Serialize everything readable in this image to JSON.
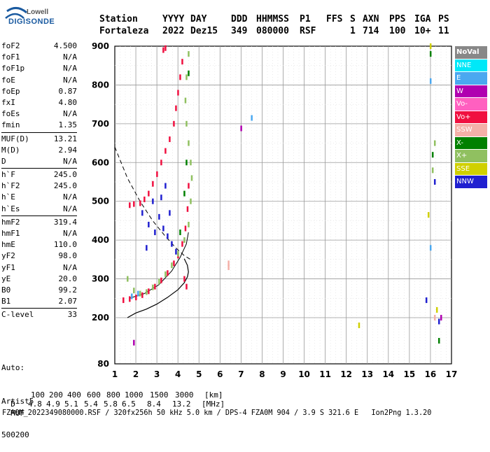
{
  "logo": {
    "line1": "Lowell",
    "line2": "DIGISONDE"
  },
  "header": {
    "labels": [
      "Station",
      "YYYY",
      "DAY",
      "DDD",
      "HHMMSS",
      "P1",
      "FFS",
      "S",
      "AXN",
      "PPS",
      "IGA",
      "PS"
    ],
    "values": [
      "Fortaleza",
      "2022",
      "Dez15",
      "349",
      "080000",
      "RSF",
      "1",
      "714",
      "100",
      "10+",
      "11"
    ]
  },
  "params": [
    {
      "name": "foF2",
      "value": "4.500"
    },
    {
      "name": "foF1",
      "value": "N/A"
    },
    {
      "name": "foF1p",
      "value": "N/A"
    },
    {
      "name": "foE",
      "value": "N/A"
    },
    {
      "name": "foEp",
      "value": "0.87"
    },
    {
      "name": "fxI",
      "value": "4.80"
    },
    {
      "name": "foEs",
      "value": "N/A"
    },
    {
      "name": "fmin",
      "value": "1.35"
    },
    {
      "name": "MUF(D)",
      "value": "13.21"
    },
    {
      "name": "M(D)",
      "value": "2.94"
    },
    {
      "name": "D",
      "value": "N/A"
    },
    {
      "name": "h`F",
      "value": "245.0"
    },
    {
      "name": "h`F2",
      "value": "245.0"
    },
    {
      "name": "h`E",
      "value": "N/A"
    },
    {
      "name": "h`Es",
      "value": "N/A"
    },
    {
      "name": "hmF2",
      "value": "319.4"
    },
    {
      "name": "hmF1",
      "value": "N/A"
    },
    {
      "name": "hmE",
      "value": "110.0"
    },
    {
      "name": "yF2",
      "value": "98.0"
    },
    {
      "name": "yF1",
      "value": "N/A"
    },
    {
      "name": "yE",
      "value": "20.0"
    },
    {
      "name": "B0",
      "value": "99.2"
    },
    {
      "name": "B1",
      "value": "2.07"
    },
    {
      "name": "C-level",
      "value": "33"
    }
  ],
  "auto": [
    "Auto:",
    "Artist5",
    "500200"
  ],
  "legend": [
    {
      "label": "NoVal",
      "color": "#888888"
    },
    {
      "label": "NNE",
      "color": "#00e8f8"
    },
    {
      "label": "E",
      "color": "#4aa8f0"
    },
    {
      "label": "W",
      "color": "#b000b0"
    },
    {
      "label": "Vo-",
      "color": "#ff60c0"
    },
    {
      "label": "Vo+",
      "color": "#f01040"
    },
    {
      "label": "SSW",
      "color": "#f4b0a8"
    },
    {
      "label": "X-",
      "color": "#008000"
    },
    {
      "label": "X+",
      "color": "#90c060"
    },
    {
      "label": "SSE",
      "color": "#d0d000"
    },
    {
      "label": "NNW",
      "color": "#2020d0"
    }
  ],
  "muf_table": {
    "row1_label": "D",
    "row1_values": [
      "100",
      "200",
      "400",
      "600",
      "800",
      "1000",
      "1500",
      "3000"
    ],
    "row1_unit": "[km]",
    "row2_label": "MUF",
    "row2_values": [
      "4.8",
      "4.9",
      "5.1",
      "5.4",
      "5.8",
      "6.5",
      "8.4",
      "13.2"
    ],
    "row2_unit": "[MHz]"
  },
  "footer": "FZA0M_2022349080000.RSF / 320fx256h 50 kHz 5.0 km / DPS-4 FZA0M 904 / 3.9 S 321.6 E   Ion2Png 1.3.20",
  "chart_data": {
    "type": "scatter",
    "title": "",
    "xlabel": "",
    "ylabel": "",
    "xlim": [
      1,
      17
    ],
    "ylim": [
      80,
      900
    ],
    "x_ticks": [
      "1",
      "2",
      "3",
      "4",
      "5",
      "6",
      "7",
      "8",
      "9",
      "10",
      "11",
      "12",
      "13",
      "14",
      "15",
      "16",
      "17"
    ],
    "y_ticks": [
      "80",
      "200",
      "300",
      "400",
      "500",
      "600",
      "700",
      "800",
      "900"
    ],
    "grid": true,
    "series": [
      {
        "name": "Vo+",
        "color": "#f01040",
        "points": [
          [
            1.4,
            245
          ],
          [
            1.7,
            248
          ],
          [
            2.0,
            252
          ],
          [
            2.3,
            258
          ],
          [
            2.6,
            268
          ],
          [
            2.9,
            280
          ],
          [
            3.2,
            296
          ],
          [
            3.5,
            315
          ],
          [
            3.8,
            340
          ],
          [
            4.0,
            360
          ],
          [
            4.2,
            390
          ],
          [
            4.35,
            430
          ],
          [
            4.45,
            480
          ],
          [
            4.5,
            540
          ],
          [
            4.4,
            280
          ],
          [
            4.3,
            300
          ],
          [
            2.2,
            495
          ],
          [
            2.4,
            505
          ],
          [
            2.6,
            520
          ],
          [
            2.8,
            545
          ],
          [
            3.0,
            570
          ],
          [
            3.2,
            600
          ],
          [
            3.4,
            630
          ],
          [
            3.6,
            660
          ],
          [
            3.8,
            700
          ],
          [
            3.9,
            740
          ],
          [
            4.0,
            780
          ],
          [
            4.1,
            820
          ],
          [
            4.2,
            860
          ],
          [
            1.7,
            490
          ],
          [
            1.9,
            493
          ],
          [
            3.3,
            890
          ],
          [
            3.4,
            895
          ]
        ]
      },
      {
        "name": "X+",
        "color": "#90c060",
        "points": [
          [
            1.6,
            300
          ],
          [
            1.9,
            270
          ],
          [
            2.2,
            262
          ],
          [
            2.5,
            266
          ],
          [
            2.8,
            278
          ],
          [
            3.1,
            293
          ],
          [
            3.4,
            312
          ],
          [
            3.7,
            335
          ],
          [
            4.0,
            365
          ],
          [
            4.3,
            400
          ],
          [
            4.5,
            440
          ],
          [
            4.6,
            500
          ],
          [
            4.65,
            560
          ],
          [
            4.6,
            600
          ],
          [
            4.5,
            650
          ],
          [
            4.4,
            700
          ],
          [
            4.35,
            760
          ],
          [
            4.4,
            820
          ],
          [
            4.5,
            880
          ],
          [
            16.1,
            580
          ],
          [
            16.2,
            650
          ]
        ]
      },
      {
        "name": "NNW",
        "color": "#2020d0",
        "points": [
          [
            2.3,
            470
          ],
          [
            2.6,
            440
          ],
          [
            2.9,
            420
          ],
          [
            3.1,
            460
          ],
          [
            3.3,
            430
          ],
          [
            3.5,
            410
          ],
          [
            3.6,
            470
          ],
          [
            3.2,
            510
          ],
          [
            3.4,
            540
          ],
          [
            3.7,
            390
          ],
          [
            3.9,
            370
          ],
          [
            2.5,
            380
          ],
          [
            2.8,
            500
          ],
          [
            15.8,
            245
          ],
          [
            16.2,
            550
          ],
          [
            16.4,
            190
          ]
        ]
      },
      {
        "name": "X-",
        "color": "#008000",
        "points": [
          [
            4.1,
            420
          ],
          [
            4.3,
            520
          ],
          [
            4.4,
            600
          ],
          [
            4.5,
            830
          ],
          [
            16.0,
            880
          ],
          [
            16.1,
            620
          ],
          [
            16.4,
            140
          ]
        ]
      },
      {
        "name": "E",
        "color": "#4aa8f0",
        "points": [
          [
            1.8,
            255
          ],
          [
            2.1,
            262
          ],
          [
            7.5,
            715
          ],
          [
            16.0,
            810
          ],
          [
            16.0,
            380
          ]
        ]
      },
      {
        "name": "W",
        "color": "#b000b0",
        "points": [
          [
            7.0,
            688
          ],
          [
            1.9,
            135
          ],
          [
            16.5,
            200
          ]
        ]
      },
      {
        "name": "SSW",
        "color": "#f4b0a8",
        "points": [
          [
            6.4,
            340
          ],
          [
            6.4,
            330
          ],
          [
            16.2,
            200
          ]
        ]
      },
      {
        "name": "SSE",
        "color": "#d0d000",
        "points": [
          [
            12.6,
            180
          ],
          [
            16.0,
            900
          ],
          [
            15.9,
            465
          ],
          [
            16.3,
            220
          ]
        ]
      }
    ]
  }
}
